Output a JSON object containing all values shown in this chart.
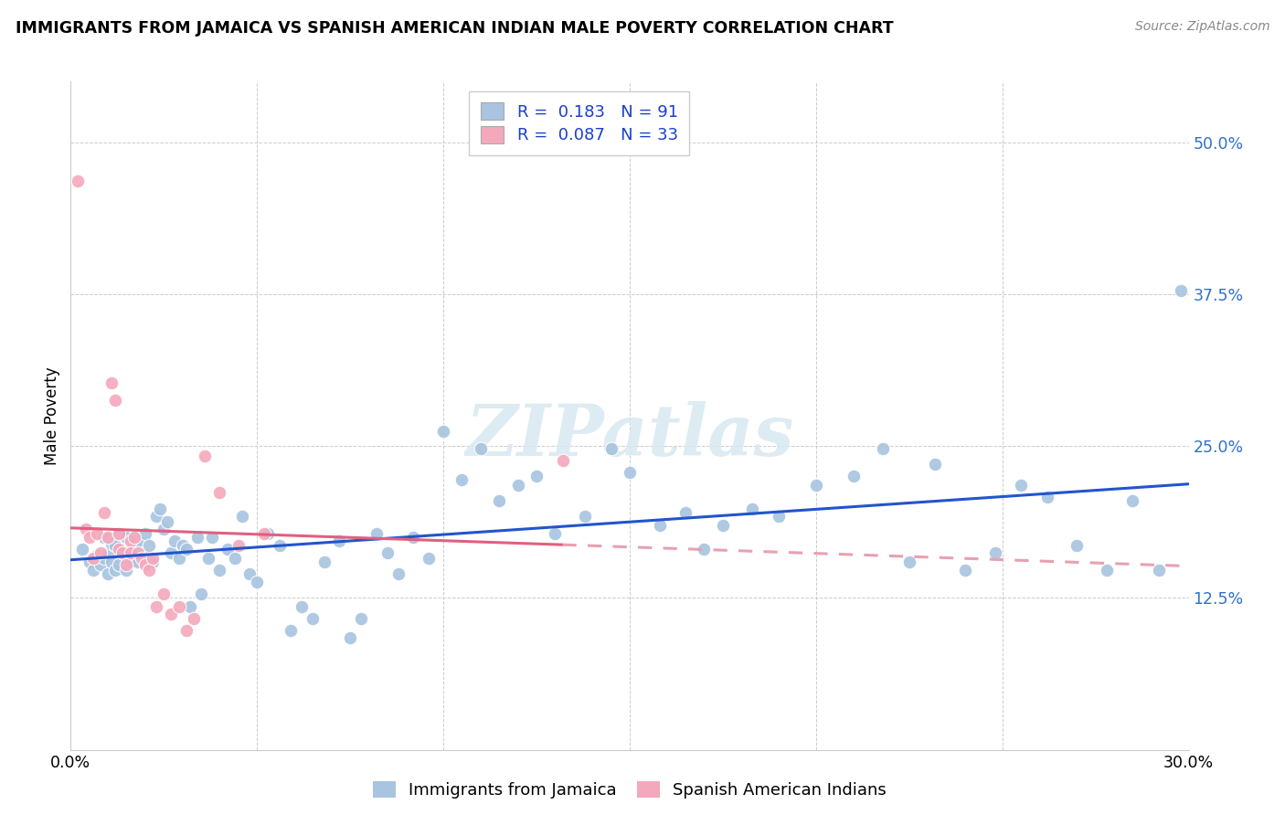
{
  "title": "IMMIGRANTS FROM JAMAICA VS SPANISH AMERICAN INDIAN MALE POVERTY CORRELATION CHART",
  "source": "Source: ZipAtlas.com",
  "ylabel": "Male Poverty",
  "xlim": [
    0.0,
    0.3
  ],
  "ylim": [
    0.0,
    0.55
  ],
  "yticks": [
    0.125,
    0.25,
    0.375,
    0.5
  ],
  "ytick_labels": [
    "12.5%",
    "25.0%",
    "37.5%",
    "50.0%"
  ],
  "xticks": [
    0.0,
    0.05,
    0.1,
    0.15,
    0.2,
    0.25,
    0.3
  ],
  "xtick_labels": [
    "0.0%",
    "",
    "",
    "",
    "",
    "",
    "30.0%"
  ],
  "series1_color": "#a8c4e0",
  "series2_color": "#f4a8bc",
  "line1_color": "#2255cc",
  "line2_color": "#e06080",
  "line2_dash_color": "#e8a0b0",
  "R1": 0.183,
  "N1": 91,
  "R2": 0.087,
  "N2": 33,
  "label1": "Immigrants from Jamaica",
  "label2": "Spanish American Indians",
  "watermark": "ZIPatlas",
  "blue_scatter_x": [
    0.003,
    0.005,
    0.006,
    0.007,
    0.008,
    0.009,
    0.009,
    0.01,
    0.01,
    0.011,
    0.011,
    0.012,
    0.012,
    0.013,
    0.013,
    0.014,
    0.015,
    0.015,
    0.016,
    0.016,
    0.017,
    0.018,
    0.018,
    0.019,
    0.02,
    0.021,
    0.022,
    0.023,
    0.024,
    0.025,
    0.026,
    0.027,
    0.028,
    0.029,
    0.03,
    0.031,
    0.032,
    0.034,
    0.035,
    0.037,
    0.038,
    0.04,
    0.042,
    0.044,
    0.046,
    0.048,
    0.05,
    0.053,
    0.056,
    0.059,
    0.062,
    0.065,
    0.068,
    0.072,
    0.075,
    0.078,
    0.082,
    0.085,
    0.088,
    0.092,
    0.096,
    0.1,
    0.105,
    0.11,
    0.115,
    0.12,
    0.125,
    0.13,
    0.138,
    0.145,
    0.15,
    0.158,
    0.165,
    0.17,
    0.175,
    0.183,
    0.19,
    0.2,
    0.21,
    0.218,
    0.225,
    0.232,
    0.24,
    0.248,
    0.255,
    0.262,
    0.27,
    0.278,
    0.285,
    0.292,
    0.298
  ],
  "blue_scatter_y": [
    0.165,
    0.155,
    0.148,
    0.16,
    0.152,
    0.158,
    0.175,
    0.162,
    0.145,
    0.17,
    0.155,
    0.148,
    0.168,
    0.152,
    0.178,
    0.162,
    0.148,
    0.175,
    0.155,
    0.165,
    0.168,
    0.155,
    0.172,
    0.16,
    0.178,
    0.168,
    0.155,
    0.192,
    0.198,
    0.182,
    0.188,
    0.162,
    0.172,
    0.158,
    0.168,
    0.165,
    0.118,
    0.175,
    0.128,
    0.158,
    0.175,
    0.148,
    0.165,
    0.158,
    0.192,
    0.145,
    0.138,
    0.178,
    0.168,
    0.098,
    0.118,
    0.108,
    0.155,
    0.172,
    0.092,
    0.108,
    0.178,
    0.162,
    0.145,
    0.175,
    0.158,
    0.262,
    0.222,
    0.248,
    0.205,
    0.218,
    0.225,
    0.178,
    0.192,
    0.248,
    0.228,
    0.185,
    0.195,
    0.165,
    0.185,
    0.198,
    0.192,
    0.218,
    0.225,
    0.248,
    0.155,
    0.235,
    0.148,
    0.162,
    0.218,
    0.208,
    0.168,
    0.148,
    0.205,
    0.148,
    0.378
  ],
  "pink_scatter_x": [
    0.002,
    0.004,
    0.005,
    0.006,
    0.007,
    0.008,
    0.009,
    0.01,
    0.011,
    0.012,
    0.013,
    0.013,
    0.014,
    0.015,
    0.016,
    0.016,
    0.017,
    0.018,
    0.019,
    0.02,
    0.021,
    0.022,
    0.023,
    0.025,
    0.027,
    0.029,
    0.031,
    0.033,
    0.036,
    0.04,
    0.045,
    0.052,
    0.132
  ],
  "pink_scatter_y": [
    0.468,
    0.182,
    0.175,
    0.158,
    0.178,
    0.162,
    0.195,
    0.175,
    0.302,
    0.288,
    0.178,
    0.165,
    0.162,
    0.152,
    0.172,
    0.162,
    0.175,
    0.162,
    0.158,
    0.152,
    0.148,
    0.158,
    0.118,
    0.128,
    0.112,
    0.118,
    0.098,
    0.108,
    0.242,
    0.212,
    0.168,
    0.178,
    0.238
  ]
}
